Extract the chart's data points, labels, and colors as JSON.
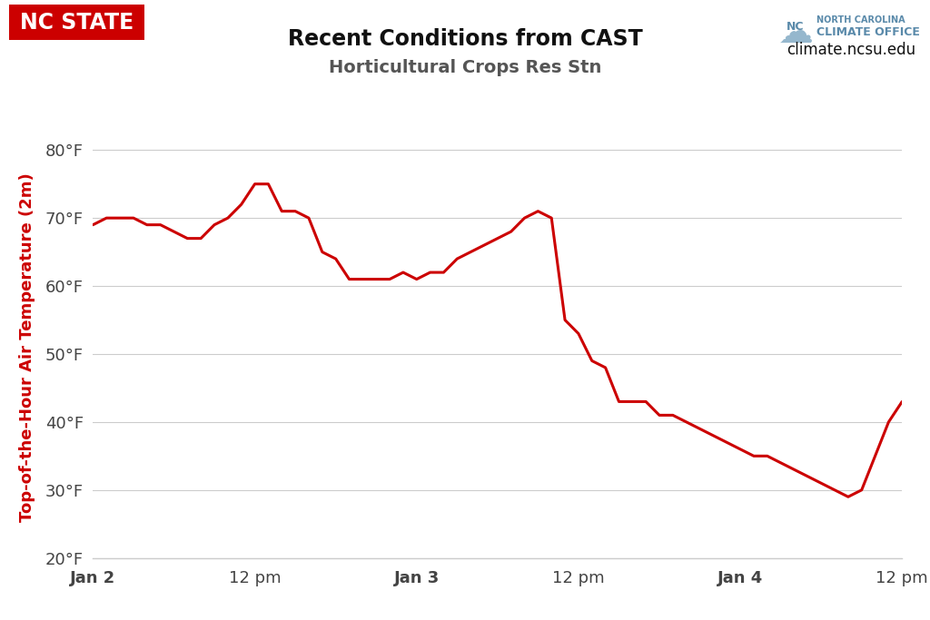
{
  "title1": "Recent Conditions from CAST",
  "title2": "Horticultural Crops Res Stn",
  "ylabel": "Top-of-the-Hour Air Temperature (2m)",
  "line_color": "#cc0000",
  "background_color": "#ffffff",
  "grid_color": "#cccccc",
  "ylim": [
    20,
    82
  ],
  "yticks": [
    20,
    30,
    40,
    50,
    60,
    70,
    80
  ],
  "nc_state_color": "#cc0000",
  "nc_state_text": "NC STATE",
  "website_text": "climate.ncsu.edu",
  "hours": [
    0,
    1,
    2,
    3,
    4,
    5,
    6,
    7,
    8,
    9,
    10,
    11,
    12,
    13,
    14,
    15,
    16,
    17,
    18,
    19,
    20,
    21,
    22,
    23,
    24,
    25,
    26,
    27,
    28,
    29,
    30,
    31,
    32,
    33,
    34,
    35,
    36,
    37,
    38,
    39,
    40,
    41,
    42,
    43,
    44,
    45,
    46,
    47,
    48,
    49,
    50,
    51,
    52,
    53,
    54,
    55,
    56,
    57,
    58,
    59,
    60
  ],
  "temps": [
    69,
    70,
    70,
    70,
    69,
    69,
    68,
    67,
    67,
    69,
    70,
    72,
    75,
    75,
    71,
    71,
    70,
    65,
    64,
    61,
    61,
    61,
    61,
    62,
    61,
    62,
    62,
    64,
    65,
    66,
    67,
    68,
    70,
    71,
    70,
    55,
    53,
    49,
    48,
    43,
    43,
    43,
    41,
    41,
    40,
    39,
    38,
    37,
    36,
    35,
    35,
    34,
    33,
    32,
    31,
    30,
    29,
    30,
    35,
    40,
    43
  ],
  "xtick_positions": [
    0,
    12,
    24,
    36,
    48,
    60
  ],
  "xtick_labels": [
    "Jan 2",
    "12 pm",
    "Jan 3",
    "12 pm",
    "Jan 4",
    "12 pm"
  ]
}
